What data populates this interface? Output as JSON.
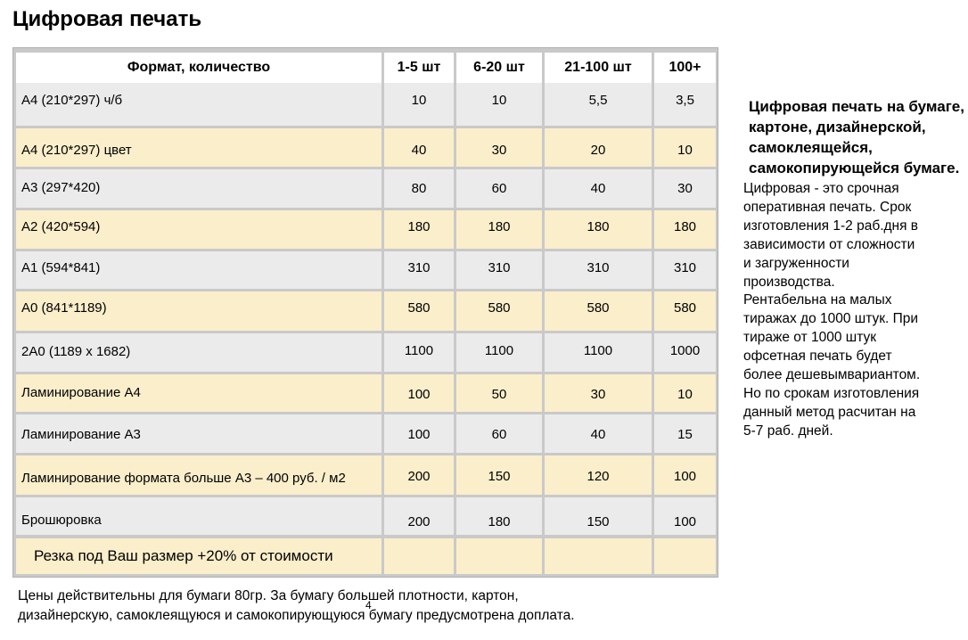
{
  "title": "Цифровая печать",
  "table": {
    "headers": [
      "Формат, количество",
      "1-5 шт",
      "6-20 шт",
      "21-100 шт",
      "100+"
    ],
    "rows": [
      {
        "label": "А4 (210*297) ч/б",
        "values": [
          "10",
          "10",
          "5,5",
          "3,5"
        ]
      },
      {
        "label": "А4 (210*297) цвет",
        "values": [
          "40",
          "30",
          "20",
          "10"
        ]
      },
      {
        "label": "А3 (297*420)",
        "values": [
          "80",
          "60",
          "40",
          "30"
        ]
      },
      {
        "label": "А2 (420*594)",
        "values": [
          "180",
          "180",
          "180",
          "180"
        ]
      },
      {
        "label": "А1 (594*841)",
        "values": [
          "310",
          "310",
          "310",
          "310"
        ]
      },
      {
        "label": "А0 (841*1189)",
        "values": [
          "580",
          "580",
          "580",
          "580"
        ]
      },
      {
        "label": "2А0 (1189 х 1682)",
        "values": [
          "1100",
          "1100",
          "1100",
          "1000"
        ]
      },
      {
        "label": "Ламинирование А4",
        "values": [
          "100",
          "50",
          "30",
          "10"
        ]
      },
      {
        "label": "Ламинирование А3",
        "values": [
          "100",
          "60",
          "40",
          "15"
        ]
      },
      {
        "label": "Ламинирование формата больше А3 – 400 руб. / м2",
        "values": [
          "200",
          "150",
          "120",
          "100"
        ]
      },
      {
        "label": "Брошюровка",
        "values": [
          "200",
          "180",
          "150",
          "100"
        ]
      },
      {
        "label": "Резка под Ваш размер +20% от стоимости",
        "values": [
          "",
          "",
          "",
          ""
        ]
      }
    ]
  },
  "side": {
    "heading": "Цифровая печать на бумаге, картоне, дизайнерской, самоклеящейся, самокопирующейся бумаге.",
    "body_lines": [
      "Цифровая - это срочная",
      "оперативная печать. Срок",
      "изготовления 1-2 раб.дня в",
      "зависимости от сложности",
      "и загруженности",
      "производства.",
      "Рентабельна на малых",
      "тиражах до 1000 штук. При",
      "тираже от 1000 штук",
      "офсетная печать будет",
      "более дешевымвариантом.",
      "Но по срокам изготовления",
      "данный метод расчитан на",
      "5-7 раб. дней."
    ]
  },
  "footnote_lines": [
    "Цены действительны для бумаги 80гр. За бумагу большей плотности, картон,",
    "дизайнерскую, самоклеящуюся и самокопирующуюся бумагу предусмотрена доплата."
  ],
  "page_number": "4"
}
